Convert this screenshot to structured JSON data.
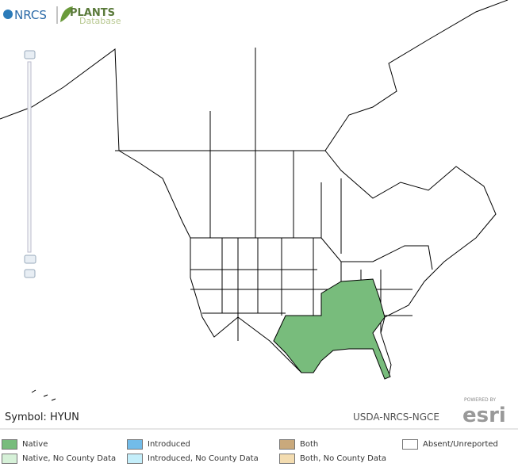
{
  "logo": {
    "agency": "NRCS",
    "database_name": "PLANTS",
    "database_sub": "Database"
  },
  "symbol": "Symbol: HYUN",
  "credit": "USDA-NRCS-NGCE",
  "esri": {
    "powered": "POWERED BY",
    "brand": "esri"
  },
  "legend": [
    {
      "label": "Native",
      "color": "#78bc7c"
    },
    {
      "label": "Native, No County Data",
      "color": "#d6f1d8"
    },
    {
      "label": "Introduced",
      "color": "#72bce9"
    },
    {
      "label": "Introduced, No County Data",
      "color": "#c4eefa"
    },
    {
      "label": "Both",
      "color": "#c9a97c"
    },
    {
      "label": "Both, No County Data",
      "color": "#f3dcb0"
    },
    {
      "label": "Absent/Unreported",
      "color": "#ffffff"
    }
  ]
}
